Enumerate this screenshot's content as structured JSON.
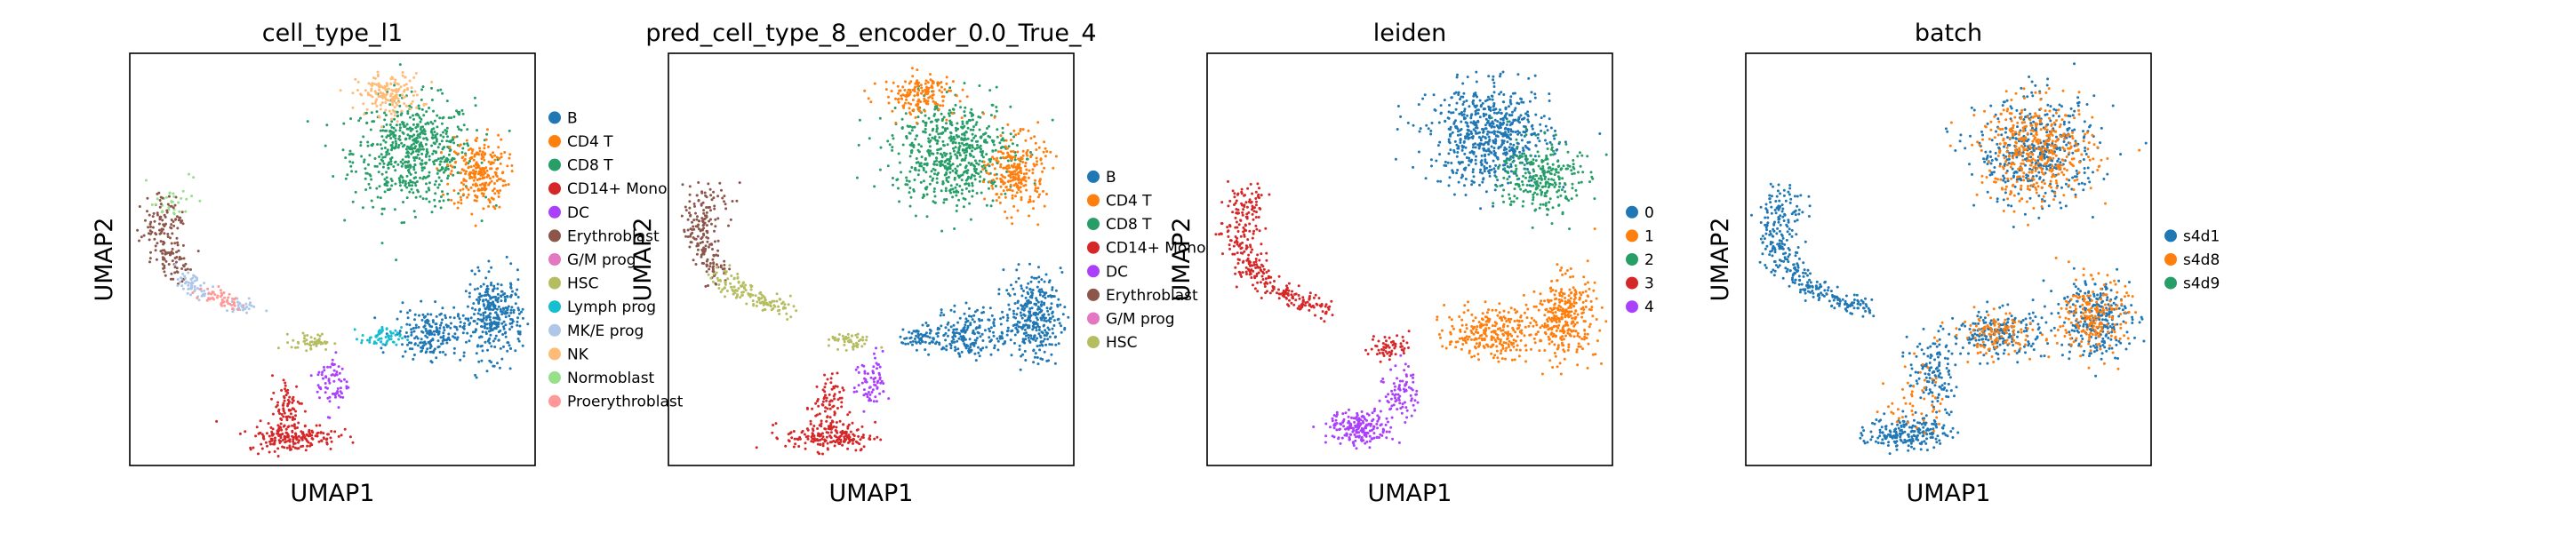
{
  "chart_data": [
    {
      "type": "scatter",
      "title": "cell_type_l1",
      "xlabel": "UMAP1",
      "ylabel": "UMAP2",
      "legend_position": "right",
      "categories": [
        "B",
        "CD4 T",
        "CD8 T",
        "CD14+ Mono",
        "DC",
        "Erythroblast",
        "G/M prog",
        "HSC",
        "Lymph prog",
        "MK/E prog",
        "NK",
        "Normoblast",
        "Proerythroblast"
      ],
      "colors": [
        "#1f77b4",
        "#ff7f0e",
        "#279e68",
        "#d62728",
        "#aa40fc",
        "#8c564b",
        "#e377c2",
        "#b5bd61",
        "#17becf",
        "#aec7e8",
        "#ffbb78",
        "#98df8a",
        "#ff9896"
      ],
      "clusters": [
        {
          "category": "CD8 T",
          "cx": 0.7,
          "cy": 0.76,
          "rx": 0.15,
          "ry": 0.13,
          "n": 600
        },
        {
          "category": "CD4 T",
          "cx": 0.86,
          "cy": 0.71,
          "rx": 0.07,
          "ry": 0.09,
          "n": 250
        },
        {
          "category": "NK",
          "cx": 0.64,
          "cy": 0.9,
          "rx": 0.08,
          "ry": 0.05,
          "n": 160
        },
        {
          "category": "B",
          "cx": 0.9,
          "cy": 0.36,
          "rx": 0.07,
          "ry": 0.1,
          "n": 320
        },
        {
          "category": "B",
          "cx": 0.74,
          "cy": 0.32,
          "rx": 0.09,
          "ry": 0.06,
          "n": 200
        },
        {
          "category": "Lymph prog",
          "cx": 0.62,
          "cy": 0.31,
          "rx": 0.05,
          "ry": 0.025,
          "n": 60
        },
        {
          "category": "HSC",
          "cx": 0.45,
          "cy": 0.3,
          "rx": 0.05,
          "ry": 0.02,
          "n": 50
        },
        {
          "category": "DC",
          "cx": 0.5,
          "cy": 0.2,
          "rx": 0.04,
          "ry": 0.07,
          "n": 70
        },
        {
          "category": "CD14+ Mono",
          "cx": 0.39,
          "cy": 0.14,
          "rx": 0.04,
          "ry": 0.08,
          "n": 80
        },
        {
          "category": "CD14+ Mono",
          "cx": 0.4,
          "cy": 0.07,
          "rx": 0.11,
          "ry": 0.035,
          "n": 180
        }
      ],
      "arm": [
        {
          "category": "Normoblast",
          "x": 0.11,
          "y": 0.66
        },
        {
          "category": "Erythroblast",
          "x": 0.08,
          "y": 0.61
        },
        {
          "category": "Erythroblast",
          "x": 0.08,
          "y": 0.55
        },
        {
          "category": "Erythroblast",
          "x": 0.1,
          "y": 0.49
        },
        {
          "category": "MK/E prog",
          "x": 0.15,
          "y": 0.44
        },
        {
          "category": "Proerythroblast",
          "x": 0.22,
          "y": 0.4
        },
        {
          "category": "MK/E prog",
          "x": 0.3,
          "y": 0.38
        }
      ]
    },
    {
      "type": "scatter",
      "title": "pred_cell_type_8_encoder_0.0_True_4",
      "xlabel": "UMAP1",
      "ylabel": "UMAP2",
      "legend_position": "right",
      "categories": [
        "B",
        "CD4 T",
        "CD8 T",
        "CD14+ Mono",
        "DC",
        "Erythroblast",
        "G/M prog",
        "HSC"
      ],
      "colors": [
        "#1f77b4",
        "#ff7f0e",
        "#279e68",
        "#d62728",
        "#aa40fc",
        "#8c564b",
        "#e377c2",
        "#b5bd61"
      ],
      "clusters": [
        {
          "category": "CD8 T",
          "cx": 0.7,
          "cy": 0.76,
          "rx": 0.15,
          "ry": 0.13,
          "n": 600
        },
        {
          "category": "CD4 T",
          "cx": 0.86,
          "cy": 0.71,
          "rx": 0.07,
          "ry": 0.09,
          "n": 250
        },
        {
          "category": "CD4 T",
          "cx": 0.62,
          "cy": 0.9,
          "rx": 0.09,
          "ry": 0.05,
          "n": 160
        },
        {
          "category": "B",
          "cx": 0.9,
          "cy": 0.36,
          "rx": 0.07,
          "ry": 0.1,
          "n": 320
        },
        {
          "category": "B",
          "cx": 0.74,
          "cy": 0.32,
          "rx": 0.09,
          "ry": 0.06,
          "n": 200
        },
        {
          "category": "B",
          "cx": 0.62,
          "cy": 0.31,
          "rx": 0.05,
          "ry": 0.025,
          "n": 60
        },
        {
          "category": "HSC",
          "cx": 0.45,
          "cy": 0.3,
          "rx": 0.05,
          "ry": 0.02,
          "n": 50
        },
        {
          "category": "DC",
          "cx": 0.5,
          "cy": 0.2,
          "rx": 0.04,
          "ry": 0.07,
          "n": 70
        },
        {
          "category": "CD14+ Mono",
          "cx": 0.39,
          "cy": 0.14,
          "rx": 0.04,
          "ry": 0.08,
          "n": 80
        },
        {
          "category": "CD14+ Mono",
          "cx": 0.4,
          "cy": 0.07,
          "rx": 0.11,
          "ry": 0.035,
          "n": 180
        }
      ],
      "arm": [
        {
          "category": "Erythroblast",
          "x": 0.11,
          "y": 0.66
        },
        {
          "category": "Erythroblast",
          "x": 0.08,
          "y": 0.61
        },
        {
          "category": "Erythroblast",
          "x": 0.08,
          "y": 0.55
        },
        {
          "category": "Erythroblast",
          "x": 0.1,
          "y": 0.49
        },
        {
          "category": "HSC",
          "x": 0.15,
          "y": 0.44
        },
        {
          "category": "HSC",
          "x": 0.22,
          "y": 0.4
        },
        {
          "category": "HSC",
          "x": 0.3,
          "y": 0.38
        }
      ]
    },
    {
      "type": "scatter",
      "title": "leiden",
      "xlabel": "UMAP1",
      "ylabel": "UMAP2",
      "legend_position": "right",
      "categories": [
        "0",
        "1",
        "2",
        "3",
        "4"
      ],
      "colors": [
        "#1f77b4",
        "#ff7f0e",
        "#279e68",
        "#d62728",
        "#aa40fc"
      ],
      "clusters": [
        {
          "category": "0",
          "cx": 0.7,
          "cy": 0.8,
          "rx": 0.15,
          "ry": 0.12,
          "n": 650
        },
        {
          "category": "2",
          "cx": 0.82,
          "cy": 0.7,
          "rx": 0.1,
          "ry": 0.09,
          "n": 280
        },
        {
          "category": "1",
          "cx": 0.88,
          "cy": 0.36,
          "rx": 0.08,
          "ry": 0.1,
          "n": 330
        },
        {
          "category": "1",
          "cx": 0.7,
          "cy": 0.32,
          "rx": 0.11,
          "ry": 0.06,
          "n": 260
        },
        {
          "category": "3",
          "cx": 0.45,
          "cy": 0.29,
          "rx": 0.05,
          "ry": 0.03,
          "n": 60
        },
        {
          "category": "4",
          "cx": 0.48,
          "cy": 0.18,
          "rx": 0.04,
          "ry": 0.07,
          "n": 80
        },
        {
          "category": "4",
          "cx": 0.38,
          "cy": 0.09,
          "rx": 0.08,
          "ry": 0.04,
          "n": 200
        }
      ],
      "arm": [
        {
          "category": "3",
          "x": 0.11,
          "y": 0.66
        },
        {
          "category": "3",
          "x": 0.08,
          "y": 0.61
        },
        {
          "category": "3",
          "x": 0.08,
          "y": 0.55
        },
        {
          "category": "3",
          "x": 0.1,
          "y": 0.49
        },
        {
          "category": "3",
          "x": 0.15,
          "y": 0.44
        },
        {
          "category": "3",
          "x": 0.22,
          "y": 0.4
        },
        {
          "category": "3",
          "x": 0.3,
          "y": 0.38
        }
      ]
    },
    {
      "type": "scatter",
      "title": "batch",
      "xlabel": "UMAP1",
      "ylabel": "UMAP2",
      "legend_position": "right",
      "categories": [
        "s4d1",
        "s4d8",
        "s4d9"
      ],
      "colors": [
        "#1f77b4",
        "#ff7f0e",
        "#279e68"
      ],
      "clusters": [
        {
          "category": "s4d1",
          "cx": 0.72,
          "cy": 0.76,
          "rx": 0.15,
          "ry": 0.13,
          "n": 420
        },
        {
          "category": "s4d8",
          "cx": 0.72,
          "cy": 0.76,
          "rx": 0.14,
          "ry": 0.12,
          "n": 420
        },
        {
          "category": "s4d1",
          "cx": 0.86,
          "cy": 0.36,
          "rx": 0.09,
          "ry": 0.1,
          "n": 260
        },
        {
          "category": "s4d8",
          "cx": 0.86,
          "cy": 0.36,
          "rx": 0.08,
          "ry": 0.09,
          "n": 200
        },
        {
          "category": "s4d1",
          "cx": 0.62,
          "cy": 0.32,
          "rx": 0.12,
          "ry": 0.06,
          "n": 200
        },
        {
          "category": "s4d8",
          "cx": 0.62,
          "cy": 0.32,
          "rx": 0.11,
          "ry": 0.05,
          "n": 120
        },
        {
          "category": "s4d1",
          "cx": 0.46,
          "cy": 0.22,
          "rx": 0.06,
          "ry": 0.08,
          "n": 120
        },
        {
          "category": "s4d1",
          "cx": 0.4,
          "cy": 0.08,
          "rx": 0.1,
          "ry": 0.04,
          "n": 200
        },
        {
          "category": "s4d8",
          "cx": 0.42,
          "cy": 0.16,
          "rx": 0.07,
          "ry": 0.09,
          "n": 50
        }
      ],
      "arm": [
        {
          "category": "s4d1",
          "x": 0.11,
          "y": 0.66
        },
        {
          "category": "s4d1",
          "x": 0.08,
          "y": 0.61
        },
        {
          "category": "s4d1",
          "x": 0.08,
          "y": 0.55
        },
        {
          "category": "s4d1",
          "x": 0.1,
          "y": 0.49
        },
        {
          "category": "s4d1",
          "x": 0.15,
          "y": 0.44
        },
        {
          "category": "s4d1",
          "x": 0.22,
          "y": 0.4
        },
        {
          "category": "s4d1",
          "x": 0.3,
          "y": 0.38
        }
      ]
    }
  ]
}
